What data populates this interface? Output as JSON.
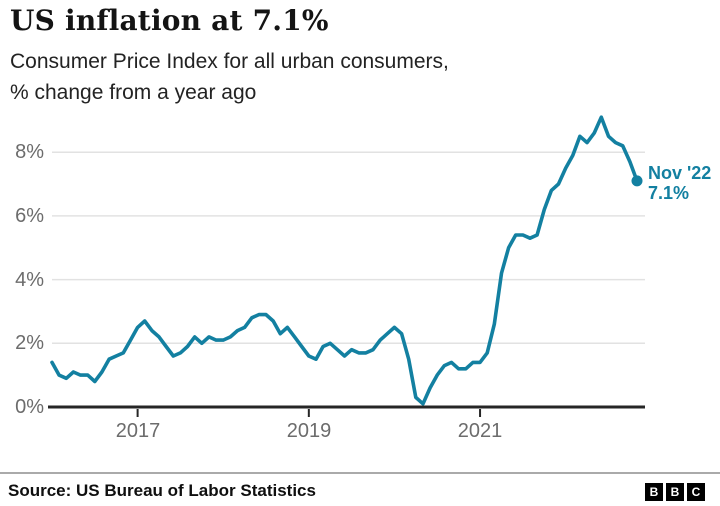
{
  "header": {
    "title": "US inflation at 7.1%",
    "subtitle_line1": "Consumer Price Index for all urban consumers,",
    "subtitle_line2": "% change from a year ago"
  },
  "chart_data": {
    "type": "line",
    "title": "US inflation at 7.1%",
    "ylabel": "% change from a year ago",
    "ylim": [
      0,
      9.3
    ],
    "grid": true,
    "legend": "none",
    "x_range": {
      "start": "2016-01",
      "end": "2022-11",
      "interval": "monthly"
    },
    "x_tick_labels": [
      "2017",
      "2019",
      "2021"
    ],
    "x_tick_month_indices": [
      12,
      36,
      60
    ],
    "y_ticks": [
      0,
      2,
      4,
      6,
      8
    ],
    "y_tick_labels": [
      "0%",
      "2%",
      "4%",
      "6%",
      "8%"
    ],
    "line_color": "#1380A1",
    "grid_color": "#e2e2e2",
    "axis_color": "#262626",
    "series": [
      {
        "name": "CPI, % change from a year ago",
        "color": "#1380A1",
        "values": [
          1.4,
          1.0,
          0.9,
          1.1,
          1.0,
          1.0,
          0.8,
          1.1,
          1.5,
          1.6,
          1.7,
          2.1,
          2.5,
          2.7,
          2.4,
          2.2,
          1.9,
          1.6,
          1.7,
          1.9,
          2.2,
          2.0,
          2.2,
          2.1,
          2.1,
          2.2,
          2.4,
          2.5,
          2.8,
          2.9,
          2.9,
          2.7,
          2.3,
          2.5,
          2.2,
          1.9,
          1.6,
          1.5,
          1.9,
          2.0,
          1.8,
          1.6,
          1.8,
          1.7,
          1.7,
          1.8,
          2.1,
          2.3,
          2.5,
          2.3,
          1.5,
          0.3,
          0.1,
          0.6,
          1.0,
          1.3,
          1.4,
          1.2,
          1.2,
          1.4,
          1.4,
          1.7,
          2.6,
          4.2,
          5.0,
          5.4,
          5.4,
          5.3,
          5.4,
          6.2,
          6.8,
          7.0,
          7.5,
          7.9,
          8.5,
          8.3,
          8.6,
          9.1,
          8.5,
          8.3,
          8.2,
          7.7,
          7.1
        ]
      }
    ],
    "annotation": {
      "label_line1": "Nov '22",
      "label_line2": "7.1%",
      "value": 7.1,
      "color": "#1380A1"
    }
  },
  "footer": {
    "source": "Source: US Bureau of Labor Statistics",
    "logo_letters": [
      "B",
      "B",
      "C"
    ]
  }
}
